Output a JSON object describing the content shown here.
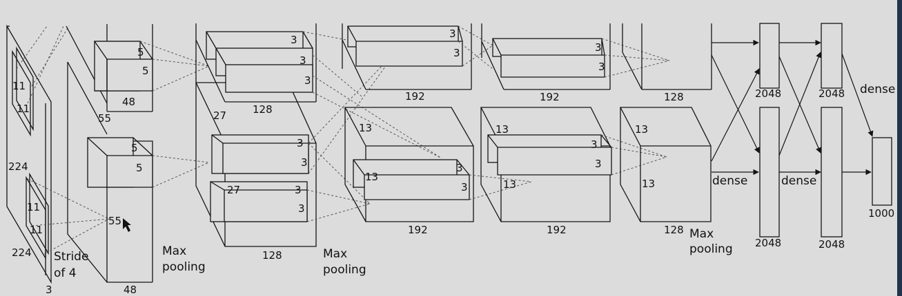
{
  "labels": {
    "input_k1": "11",
    "input_k2": "11",
    "input_h": "224",
    "input_k3": "11",
    "input_k4": "11",
    "input_w": "224",
    "input_d": "3",
    "stride": "Stride",
    "stride2": "of 4",
    "c1_5a": "5",
    "c1_5b": "5",
    "c1_48a": "48",
    "c1_55a": "55",
    "c1_5c": "5",
    "c1_5d": "5",
    "c1_55b": "55",
    "c1_48b": "48",
    "max": "Max",
    "pooling": "pooling",
    "three": "3",
    "c2_128a": "128",
    "c2_27a": "27",
    "c2_27b": "27",
    "c2_128b": "128",
    "c3_192a": "192",
    "c3_13a": "13",
    "c3_13b": "13",
    "c3_192b": "192",
    "c4_192a": "192",
    "c4_13a": "13",
    "c4_13b": "13",
    "c4_192b": "192",
    "c5_128a": "128",
    "c5_13a": "13",
    "c5_13b": "13",
    "c5_128b": "128",
    "dense": "dense",
    "fc_2048": "2048",
    "out_1000": "1000"
  }
}
